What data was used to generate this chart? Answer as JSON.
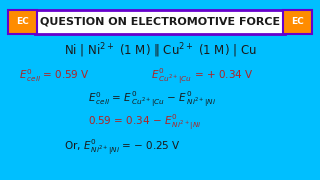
{
  "title": "QUESTION ON ELECTROMOTIVE FORCE",
  "bg_outer": "#00BFFF",
  "bg_inner": "#FFF5DC",
  "title_box_border": "#6600CC",
  "title_box_bg": "#FFFFFF",
  "ec_bg": "#FF8C00",
  "ec_text": "EC",
  "black": "#1A1A1A",
  "red": "#B22222",
  "title_fontsize": 8.0,
  "body_fontsize": 7.5
}
